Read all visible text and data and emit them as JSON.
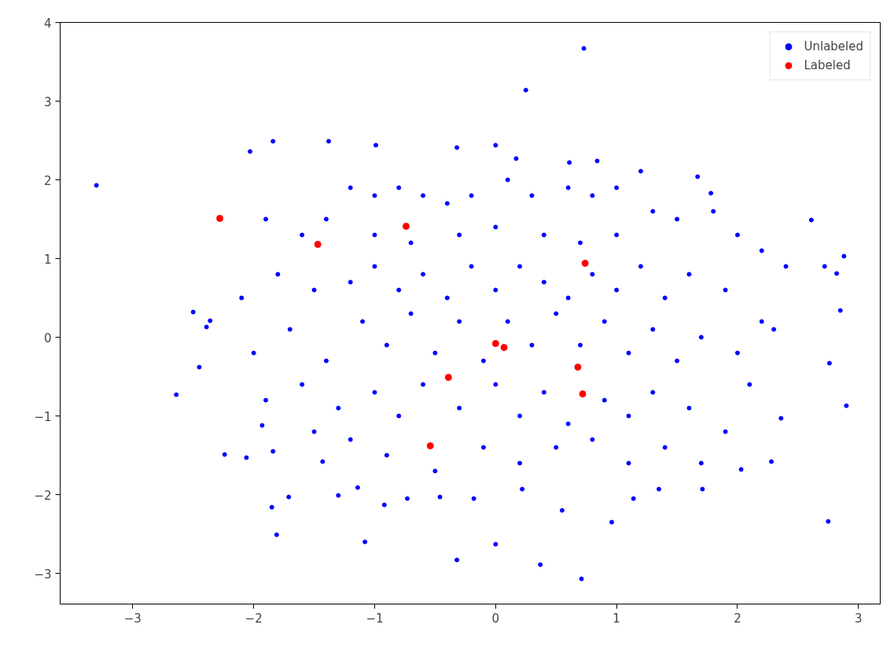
{
  "chart_data": {
    "type": "scatter",
    "xlim": [
      -3.6,
      3.18
    ],
    "ylim": [
      -3.39,
      4
    ],
    "xticks": [
      {
        "value": -3,
        "label": "−3"
      },
      {
        "value": -2,
        "label": "−2"
      },
      {
        "value": -1,
        "label": "−1"
      },
      0,
      1,
      2,
      3
    ],
    "yticks": [
      {
        "value": -3,
        "label": "−3"
      },
      {
        "value": -2,
        "label": "−2"
      },
      {
        "value": -1,
        "label": "−1"
      },
      0,
      1,
      2,
      3,
      4
    ],
    "grid": false,
    "legend": "top right",
    "marker": "circle",
    "series": [
      {
        "name": "Unlabeled",
        "color": "#0000ff",
        "x": [
          -3.3,
          0.73,
          0.25,
          0.71,
          0.37,
          -0.32,
          0.0,
          -1.08,
          -1.81,
          -1.85,
          2.75,
          -2.64,
          -2.24,
          -2.06,
          -2.5,
          -2.36,
          -2.39,
          -2.03,
          -1.84,
          -1.38,
          -0.99,
          -0.32,
          0.0,
          0.17,
          0.61,
          0.84,
          1.2,
          1.67,
          1.78,
          2.61,
          2.72,
          2.82,
          2.88,
          2.85,
          2.76,
          2.9,
          2.36,
          2.28,
          2.03,
          1.71,
          1.35,
          1.14,
          0.96,
          0.55,
          0.22,
          -0.18,
          -0.46,
          -0.73,
          -0.92,
          -1.14,
          -1.3,
          -1.71,
          -1.43,
          -1.84,
          -1.93,
          -2.45,
          -1.9,
          -1.6,
          -1.4,
          -1.2,
          -1.0,
          -0.8,
          -0.6,
          -0.4,
          -0.2,
          0.1,
          0.3,
          0.6,
          0.8,
          1.0,
          1.3,
          1.5,
          1.8,
          2.0,
          2.2,
          2.4,
          -2.1,
          -1.8,
          -1.5,
          -1.2,
          -1.0,
          -0.8,
          -0.6,
          -0.4,
          -0.2,
          0.0,
          0.2,
          0.4,
          0.6,
          0.8,
          1.0,
          1.2,
          1.4,
          1.6,
          1.9,
          2.2,
          -2.0,
          -1.7,
          -1.4,
          -1.1,
          -0.9,
          -0.7,
          -0.5,
          -0.3,
          -0.1,
          0.1,
          0.3,
          0.5,
          0.7,
          0.9,
          1.1,
          1.3,
          1.5,
          1.7,
          2.0,
          2.3,
          -1.9,
          -1.6,
          -1.3,
          -1.0,
          -0.8,
          -0.6,
          -0.3,
          0.0,
          0.2,
          0.4,
          0.6,
          0.9,
          1.1,
          1.3,
          1.6,
          1.9,
          2.1,
          -1.2,
          -0.9,
          -0.5,
          -0.1,
          0.2,
          0.5,
          0.8,
          1.1,
          1.4,
          1.7,
          -1.5,
          0.0,
          -0.3,
          0.4,
          0.7,
          -0.7,
          -1.0,
          1.0
        ],
        "values": [
          1.93,
          3.67,
          3.14,
          -3.07,
          -2.89,
          -2.83,
          -2.63,
          -2.6,
          -2.51,
          -2.16,
          -2.34,
          -0.73,
          -1.49,
          -1.53,
          0.32,
          0.21,
          0.13,
          2.36,
          2.49,
          2.49,
          2.44,
          2.41,
          2.44,
          2.27,
          2.22,
          2.24,
          2.11,
          2.04,
          1.83,
          1.49,
          0.9,
          0.81,
          1.03,
          0.34,
          -0.33,
          -0.87,
          -1.03,
          -1.58,
          -1.68,
          -1.93,
          -1.93,
          -2.05,
          -2.35,
          -2.2,
          -1.93,
          -2.05,
          -2.03,
          -2.05,
          -2.13,
          -1.91,
          -2.01,
          -2.03,
          -1.58,
          -1.45,
          -1.12,
          -0.38,
          1.5,
          1.3,
          1.5,
          1.9,
          1.8,
          1.9,
          1.8,
          1.7,
          1.8,
          2.0,
          1.8,
          1.9,
          1.8,
          1.9,
          1.6,
          1.5,
          1.6,
          1.3,
          1.1,
          0.9,
          0.5,
          0.8,
          0.6,
          0.7,
          0.9,
          0.6,
          0.8,
          0.5,
          0.9,
          0.6,
          0.9,
          0.7,
          0.5,
          0.8,
          0.6,
          0.9,
          0.5,
          0.8,
          0.6,
          0.2,
          -0.2,
          0.1,
          -0.3,
          0.2,
          -0.1,
          0.3,
          -0.2,
          0.2,
          -0.3,
          0.2,
          -0.1,
          0.3,
          -0.1,
          0.2,
          -0.2,
          0.1,
          -0.3,
          0.0,
          -0.2,
          0.1,
          -0.8,
          -0.6,
          -0.9,
          -0.7,
          -1.0,
          -0.6,
          -0.9,
          -0.6,
          -1.0,
          -0.7,
          -1.1,
          -0.8,
          -1.0,
          -0.7,
          -0.9,
          -1.2,
          -0.6,
          -1.3,
          -1.5,
          -1.7,
          -1.4,
          -1.6,
          -1.4,
          -1.3,
          -1.6,
          -1.4,
          -1.6,
          -1.2,
          1.4,
          1.3,
          1.3,
          1.2,
          1.2,
          1.3,
          1.3
        ]
      },
      {
        "name": "Labeled",
        "color": "#ff0000",
        "x": [
          -2.28,
          -1.47,
          -0.74,
          0.74,
          0.0,
          0.07,
          -0.39,
          0.68,
          0.72,
          -0.54
        ],
        "values": [
          1.51,
          1.18,
          1.41,
          0.94,
          -0.08,
          -0.13,
          -0.51,
          -0.38,
          -0.72,
          -1.38
        ]
      }
    ]
  }
}
